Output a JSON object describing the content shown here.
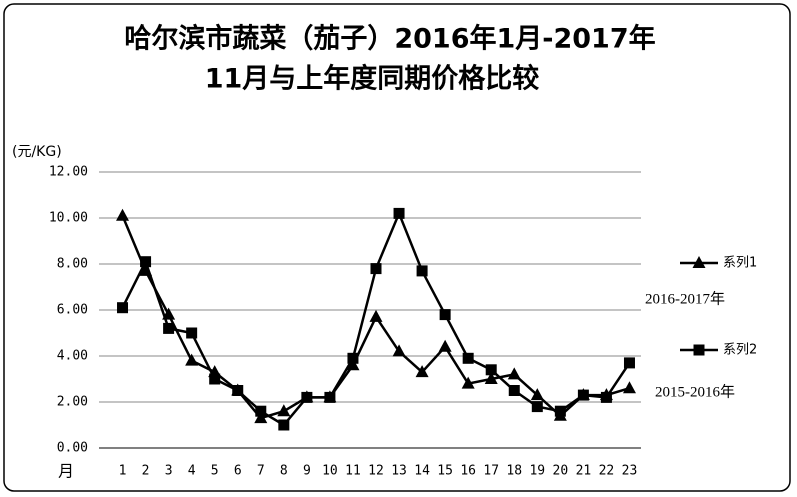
{
  "chart_data": {
    "type": "line",
    "title": [
      "哈尔滨市蔬菜（茄子）2016年1月-2017年",
      "11月与上年度同期价格比较"
    ],
    "y_label": "(元/KG)",
    "x_label": "月",
    "annotations": [
      "2016-2017年",
      "2015-2016年"
    ],
    "categories": [
      "1",
      "2",
      "3",
      "4",
      "5",
      "6",
      "7",
      "8",
      "9",
      "10",
      "11",
      "12",
      "13",
      "14",
      "15",
      "16",
      "17",
      "18",
      "19",
      "20",
      "21",
      "22",
      "23"
    ],
    "series": [
      {
        "name": "系列1",
        "color": "#000000",
        "marker": "triangle",
        "values": [
          10.1,
          7.7,
          5.8,
          3.8,
          3.3,
          2.5,
          1.3,
          1.6,
          2.2,
          2.2,
          3.6,
          5.7,
          4.2,
          3.3,
          4.4,
          2.8,
          3.0,
          3.2,
          2.3,
          1.4,
          2.3,
          2.3,
          2.6
        ]
      },
      {
        "name": "系列2",
        "color": "#000000",
        "marker": "square",
        "values": [
          6.1,
          8.1,
          5.2,
          5.0,
          3.0,
          2.5,
          1.6,
          1.0,
          2.2,
          2.2,
          3.9,
          7.8,
          10.2,
          7.7,
          5.8,
          3.9,
          3.4,
          2.5,
          1.8,
          1.6,
          2.3,
          2.2,
          3.7
        ]
      }
    ],
    "ylim": [
      0,
      12
    ],
    "yticks": [
      {
        "value": 0,
        "label": "0.00"
      },
      {
        "value": 2,
        "label": "2.00"
      },
      {
        "value": 4,
        "label": "4.00"
      },
      {
        "value": 6,
        "label": "6.00"
      },
      {
        "value": 8,
        "label": "8.00"
      },
      {
        "value": 10,
        "label": "10.00"
      },
      {
        "value": 12,
        "label": "12.00"
      }
    ],
    "grid": true
  }
}
